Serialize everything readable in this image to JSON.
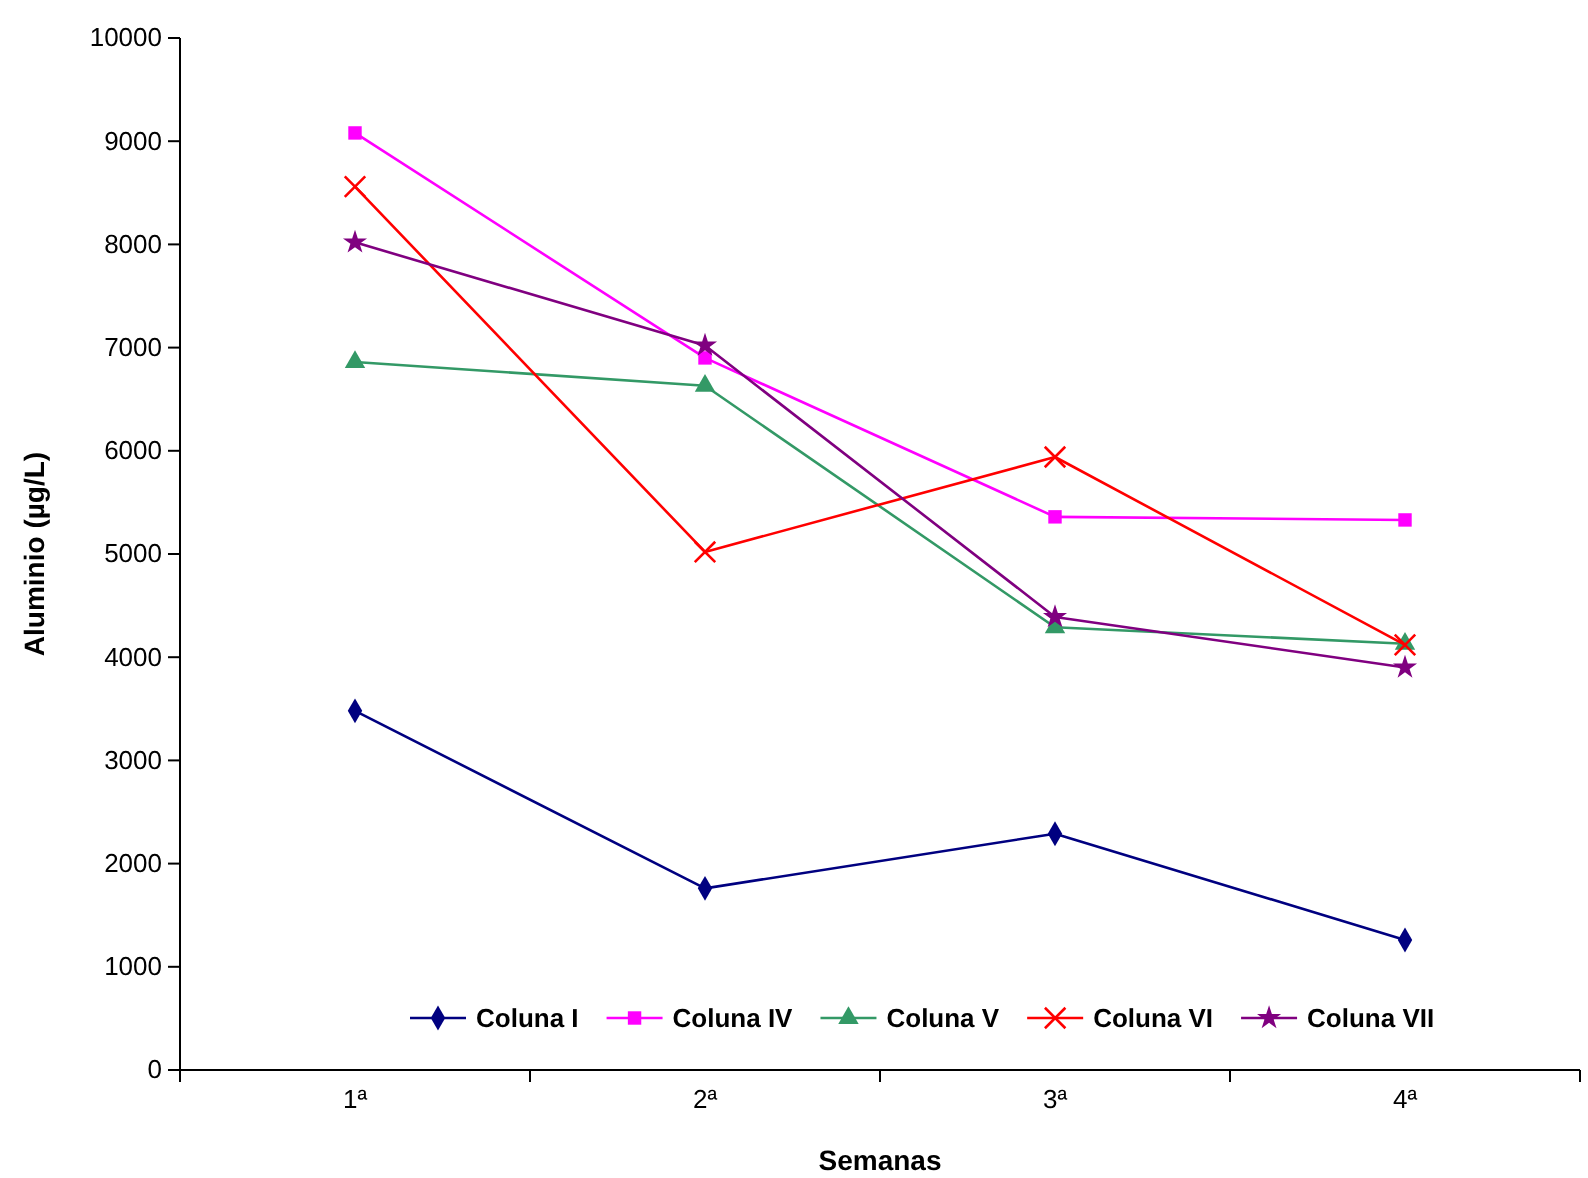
{
  "chart_data": {
    "type": "line",
    "xlabel": "Semanas",
    "ylabel": "Aluminio (µg/L)",
    "categories": [
      "1ª",
      "2ª",
      "3ª",
      "4ª"
    ],
    "ylim": [
      0,
      10000
    ],
    "yticks": [
      0,
      1000,
      2000,
      3000,
      4000,
      5000,
      6000,
      7000,
      8000,
      9000,
      10000
    ],
    "grid": false,
    "legend": "bottom",
    "line_style": "solid",
    "series": [
      {
        "name": "Coluna I",
        "color": "#000080",
        "marker": "diamond",
        "values": [
          3480,
          1760,
          2290,
          1260
        ]
      },
      {
        "name": "Coluna IV",
        "color": "#ff00ff",
        "marker": "square",
        "values": [
          9080,
          6900,
          5360,
          5330
        ]
      },
      {
        "name": "Coluna V",
        "color": "#339966",
        "marker": "triangle",
        "values": [
          6860,
          6630,
          4290,
          4130
        ]
      },
      {
        "name": "Coluna VI",
        "color": "#ff0000",
        "marker": "cross",
        "values": [
          8560,
          5020,
          5940,
          4120
        ]
      },
      {
        "name": "Coluna VII",
        "color": "#800080",
        "marker": "star",
        "values": [
          8020,
          7020,
          4390,
          3900
        ]
      }
    ]
  }
}
